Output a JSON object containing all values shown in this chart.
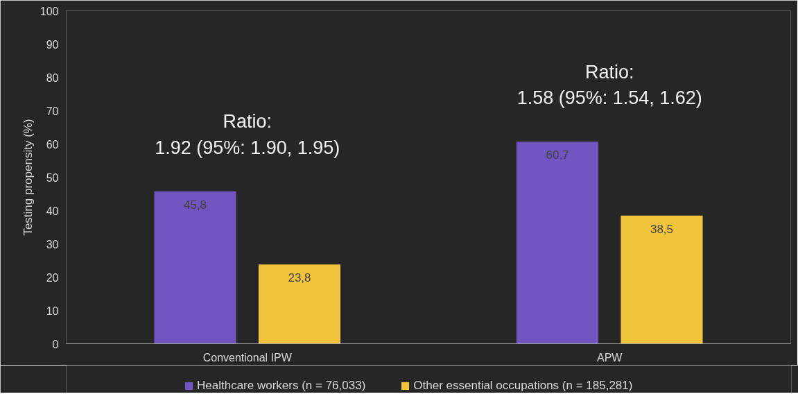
{
  "chart_data": {
    "type": "bar",
    "ylabel": "Testing propensity (%)",
    "categories": [
      "Conventional IPW",
      "APW"
    ],
    "series": [
      {
        "name": "Healthcare workers (n = 76,033)",
        "color": "#7155c0",
        "values": [
          45.8,
          60.7
        ],
        "value_labels": [
          "45,8",
          "60,7"
        ]
      },
      {
        "name": "Other essential occupations (n = 185,281)",
        "color": "#f2c43c",
        "values": [
          23.8,
          38.5
        ],
        "value_labels": [
          "23,8",
          "38,5"
        ]
      }
    ],
    "annotations": [
      "Ratio:\n1.92 (95%: 1.90, 1.95)",
      "Ratio:\n1.58 (95%: 1.54, 1.62)"
    ],
    "ylim": [
      0,
      100
    ],
    "yticks": [
      0,
      10,
      20,
      30,
      40,
      50,
      60,
      70,
      80,
      90,
      100
    ],
    "grid": false,
    "legend": "bottom"
  }
}
